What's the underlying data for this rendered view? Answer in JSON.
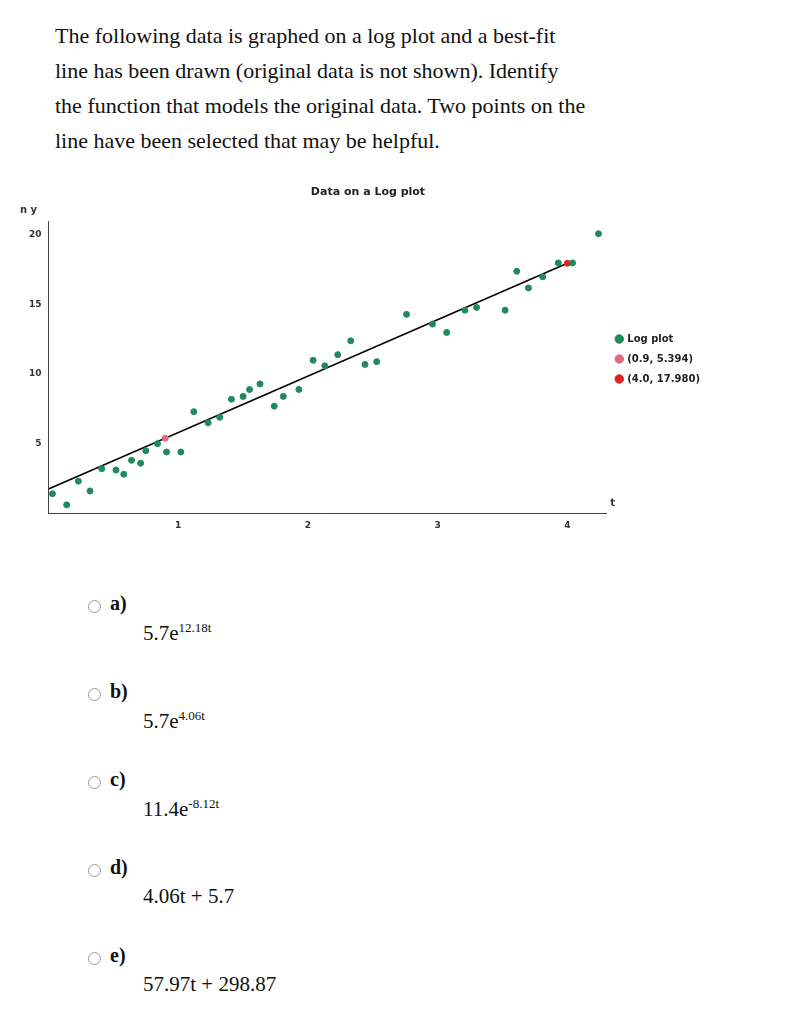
{
  "question": {
    "lines": [
      "The following data is graphed on a log plot and a best-fit",
      "line has been drawn (original data is not shown). Identify",
      "the function that models the original data. Two points on the",
      "line have been selected that may be helpful."
    ]
  },
  "chart_data": {
    "type": "scatter",
    "title": "Data on a Log plot",
    "x_label": "t",
    "y_label": "ln y",
    "xlim": [
      0,
      4.3
    ],
    "ylim": [
      0,
      21
    ],
    "xticks": [
      1,
      2,
      3,
      4
    ],
    "yticks": [
      5,
      10,
      15,
      20
    ],
    "grid": false,
    "legend": "right",
    "series": [
      {
        "name": "Log plot",
        "color": "#1f8a5b",
        "marker": "circle",
        "x": [
          0.03,
          0.14,
          0.23,
          0.32,
          0.41,
          0.52,
          0.58,
          0.64,
          0.71,
          0.75,
          0.84,
          0.91,
          1.02,
          1.12,
          1.23,
          1.32,
          1.41,
          1.5,
          1.55,
          1.63,
          1.74,
          1.81,
          1.93,
          2.04,
          2.13,
          2.23,
          2.33,
          2.44,
          2.53,
          2.76,
          2.96,
          3.07,
          3.21,
          3.3,
          3.52,
          3.61,
          3.7,
          3.81,
          3.93,
          4.04,
          4.24
        ],
        "values": [
          1.4,
          0.6,
          2.3,
          1.6,
          3.2,
          3.1,
          2.8,
          3.8,
          3.6,
          4.5,
          5.0,
          4.4,
          4.4,
          7.3,
          6.5,
          6.9,
          8.2,
          8.4,
          8.9,
          9.3,
          7.7,
          8.4,
          8.9,
          11.0,
          10.6,
          11.4,
          12.4,
          10.7,
          10.9,
          14.3,
          13.6,
          13.0,
          14.6,
          14.8,
          14.6,
          17.4,
          16.2,
          17.0,
          18.0,
          18.0,
          20.1
        ]
      },
      {
        "type": "line",
        "color": "#000000",
        "line_style": "solid",
        "x": [
          0,
          4.0
        ],
        "values": [
          1.74,
          17.98
        ]
      },
      {
        "name": "(0.9, 5.394)",
        "color": "#e06a84",
        "marker": "circle",
        "x": [
          0.9
        ],
        "values": [
          5.394
        ]
      },
      {
        "name": "(4.0, 17.980)",
        "color": "#e02424",
        "marker": "circle",
        "x": [
          4.0
        ],
        "values": [
          17.98
        ]
      }
    ]
  },
  "options": [
    {
      "label": "a)",
      "text": "5.7e",
      "sup": "12.18t"
    },
    {
      "label": "b)",
      "text": "5.7e",
      "sup": "4.06t"
    },
    {
      "label": "c)",
      "text": "11.4e",
      "sup": "-8.12t"
    },
    {
      "label": "d)",
      "text": "4.06t + 5.7"
    },
    {
      "label": "e)",
      "text": "57.97t + 298.87"
    }
  ]
}
